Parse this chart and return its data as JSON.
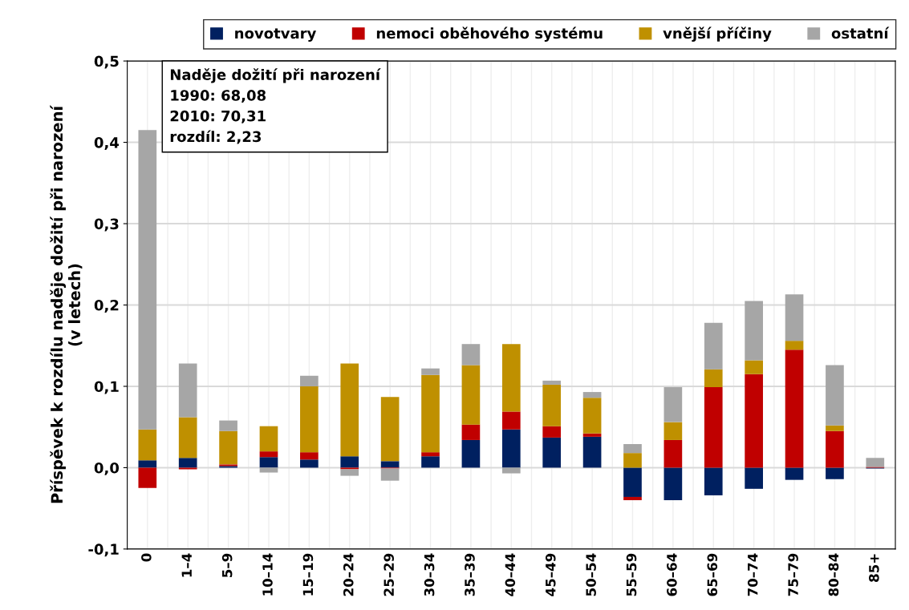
{
  "chart_data": {
    "type": "bar",
    "stacked": true,
    "ylabel": "Příspěvek k rozdílu naděje dožití při narození\n(v letech)",
    "annotations": [
      "Naděje dožití při narození\n1990: 68,08\n2010: 70,31\nrozdíl: 2,23"
    ],
    "categories": [
      "0",
      "1–4",
      "5–9",
      "10–14",
      "15–19",
      "20–24",
      "25–29",
      "30–34",
      "35–39",
      "40–44",
      "45–49",
      "50–54",
      "55–59",
      "60–64",
      "65–69",
      "70–74",
      "75–79",
      "80–84",
      "85+"
    ],
    "series": [
      {
        "name": "novotvary",
        "color": "#002060",
        "values": [
          0.009,
          0.012,
          0.002,
          0.013,
          0.01,
          0.014,
          0.008,
          0.014,
          0.034,
          0.047,
          0.037,
          0.038,
          -0.036,
          -0.04,
          -0.034,
          -0.026,
          -0.015,
          -0.014,
          -0.001
        ]
      },
      {
        "name": "nemoci oběhového systému",
        "color": "#c00000",
        "values": [
          -0.025,
          -0.002,
          0.002,
          0.007,
          0.009,
          -0.002,
          -0.001,
          0.005,
          0.019,
          0.022,
          0.014,
          0.004,
          -0.004,
          0.034,
          0.099,
          0.115,
          0.145,
          0.045,
          0.001
        ]
      },
      {
        "name": "vnější příčiny",
        "color": "#bf9000",
        "values": [
          0.038,
          0.05,
          0.041,
          0.031,
          0.081,
          0.114,
          0.079,
          0.095,
          0.073,
          0.083,
          0.051,
          0.044,
          0.018,
          0.022,
          0.022,
          0.017,
          0.011,
          0.007,
          0.0
        ]
      },
      {
        "name": "ostatní",
        "color": "#a6a6a6",
        "values": [
          0.368,
          0.066,
          0.013,
          -0.006,
          0.013,
          -0.008,
          -0.015,
          0.008,
          0.026,
          -0.007,
          0.005,
          0.007,
          0.011,
          0.043,
          0.057,
          0.073,
          0.057,
          0.074,
          0.011
        ]
      }
    ],
    "ylim": [
      -0.1,
      0.5
    ],
    "yticks": [
      {
        "value": -0.1,
        "label": "-0,1"
      },
      {
        "value": 0.0,
        "label": "0,0"
      },
      {
        "value": 0.1,
        "label": "0,1"
      },
      {
        "value": 0.2,
        "label": "0,2"
      },
      {
        "value": 0.3,
        "label": "0,3"
      },
      {
        "value": 0.4,
        "label": "0,4"
      },
      {
        "value": 0.5,
        "label": "0,5"
      }
    ],
    "grid": true,
    "legend": "top"
  }
}
